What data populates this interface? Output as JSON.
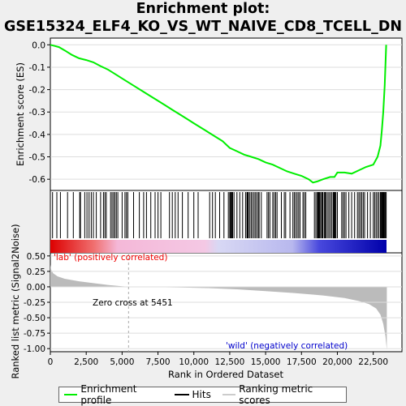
{
  "title_line1": "Enrichment plot:",
  "title_line2": "GSE15324_ELF4_KO_VS_WT_NAIVE_CD8_TCELL_DN",
  "colors": {
    "es_curve": "#00ee00",
    "hits": "#000000",
    "metric_fill": "#bbbbbb",
    "lab_label": "#ee0000",
    "wild_label": "#0000cc",
    "zero_line": "#aaaaaa"
  },
  "chart_data": [
    {
      "type": "line",
      "name": "enrichment-profile",
      "ylabel": "Enrichment score (ES)",
      "ylim": [
        -0.65,
        0.03
      ],
      "xlim": [
        0,
        24500
      ],
      "yticks": [
        "0.0",
        "-0.1",
        "-0.2",
        "-0.3",
        "-0.4",
        "-0.5",
        "-0.6"
      ],
      "ytick_values": [
        0.0,
        -0.1,
        -0.2,
        -0.3,
        -0.4,
        -0.5,
        -0.6
      ],
      "x": [
        0,
        300,
        600,
        1000,
        1500,
        2000,
        2500,
        3000,
        3500,
        4000,
        4500,
        5000,
        5500,
        6000,
        6500,
        7000,
        7500,
        8000,
        8500,
        9000,
        9500,
        10000,
        10500,
        11000,
        11500,
        12000,
        12500,
        13000,
        13500,
        14000,
        14500,
        15000,
        15500,
        16000,
        16500,
        17000,
        17500,
        18000,
        18300,
        18600,
        19000,
        19500,
        19800,
        20000,
        20500,
        21000,
        21500,
        22000,
        22500,
        22800,
        23000,
        23100,
        23200,
        23300,
        23400
      ],
      "y": [
        0.0,
        -0.005,
        -0.01,
        -0.025,
        -0.045,
        -0.06,
        -0.068,
        -0.078,
        -0.095,
        -0.11,
        -0.13,
        -0.15,
        -0.17,
        -0.19,
        -0.21,
        -0.23,
        -0.25,
        -0.27,
        -0.29,
        -0.31,
        -0.33,
        -0.35,
        -0.37,
        -0.39,
        -0.41,
        -0.43,
        -0.46,
        -0.475,
        -0.49,
        -0.5,
        -0.51,
        -0.525,
        -0.535,
        -0.55,
        -0.565,
        -0.575,
        -0.585,
        -0.6,
        -0.615,
        -0.61,
        -0.6,
        -0.59,
        -0.59,
        -0.57,
        -0.57,
        -0.575,
        -0.56,
        -0.545,
        -0.535,
        -0.5,
        -0.45,
        -0.38,
        -0.3,
        -0.18,
        0.0
      ]
    },
    {
      "type": "line",
      "name": "hits",
      "hit_ranks": [
        150,
        450,
        700,
        1200,
        1600,
        2050,
        2100,
        2400,
        2550,
        2700,
        2850,
        3000,
        3200,
        3500,
        3700,
        3800,
        3900,
        4200,
        4300,
        4400,
        4500,
        4600,
        4700,
        5000,
        5200,
        5300,
        5400,
        5800,
        6200,
        6500,
        6700,
        7000,
        7300,
        7500,
        7700,
        8300,
        8500,
        8700,
        8900,
        9200,
        9600,
        10000,
        10300,
        11100,
        11300,
        11500,
        11800,
        12100,
        12400,
        12500,
        12550,
        12600,
        12650,
        12700,
        12800,
        13000,
        13200,
        13400,
        13600,
        13700,
        13750,
        13800,
        13900,
        14000,
        14100,
        14200,
        14300,
        14400,
        14500,
        14550,
        14700,
        15100,
        15200,
        15300,
        15500,
        15600,
        15700,
        15800,
        16100,
        16300,
        16400,
        16700,
        16900,
        17000,
        17100,
        17200,
        17300,
        17400,
        17600,
        17700,
        17800,
        18400,
        18500,
        18600,
        18650,
        18700,
        18750,
        18800,
        18900,
        18950,
        19000,
        19100,
        19150,
        19200,
        19300,
        19400,
        19500,
        19600,
        19700,
        19750,
        19800,
        19850,
        19900,
        20000,
        20300,
        20400,
        20500,
        20600,
        20800,
        21000,
        21200,
        21400,
        21500,
        21600,
        21700,
        21800,
        21900,
        22100,
        22300,
        22500,
        22600,
        22700,
        22800,
        22900,
        23000,
        23050,
        23100,
        23150,
        23200,
        23250,
        23300,
        23350,
        23400
      ]
    },
    {
      "type": "area",
      "name": "ranked-metric",
      "xlabel": "Rank in Ordered Dataset",
      "ylabel": "Ranked list metric (Signal2Noise)",
      "ylim": [
        -1.05,
        0.55
      ],
      "xlim": [
        0,
        24500
      ],
      "xticks": [
        "0",
        "2,500",
        "5,000",
        "7,500",
        "10,000",
        "12,500",
        "15,000",
        "17,500",
        "20,000",
        "22,500"
      ],
      "xtick_values": [
        0,
        2500,
        5000,
        7500,
        10000,
        12500,
        15000,
        17500,
        20000,
        22500
      ],
      "yticks": [
        "0.50",
        "0.25",
        "0.00",
        "-0.25",
        "-0.50",
        "-0.75",
        "-1.00"
      ],
      "ytick_values": [
        0.5,
        0.25,
        0.0,
        -0.25,
        -0.5,
        -0.75,
        -1.0
      ],
      "x": [
        0,
        50,
        200,
        500,
        1000,
        2000,
        3000,
        4000,
        5000,
        5451,
        7000,
        9000,
        11000,
        13000,
        15000,
        17000,
        19000,
        20500,
        21500,
        22200,
        22700,
        23000,
        23200,
        23350,
        23450,
        23450
      ],
      "y": [
        0.36,
        0.28,
        0.22,
        0.17,
        0.13,
        0.09,
        0.06,
        0.03,
        0.01,
        0.0,
        -0.005,
        -0.01,
        -0.02,
        -0.04,
        -0.07,
        -0.1,
        -0.14,
        -0.18,
        -0.23,
        -0.28,
        -0.35,
        -0.45,
        -0.6,
        -0.8,
        -1.02,
        0.0
      ],
      "zero_cross_label": "Zero cross at 5451",
      "zero_cross_rank": 5451,
      "lab_label": "'lab' (positively correlated)",
      "wild_label": "'wild' (negatively correlated)"
    }
  ],
  "legend": {
    "items": [
      {
        "label": "Enrichment profile"
      },
      {
        "label": "Hits"
      },
      {
        "label": "Ranking metric scores"
      }
    ]
  }
}
